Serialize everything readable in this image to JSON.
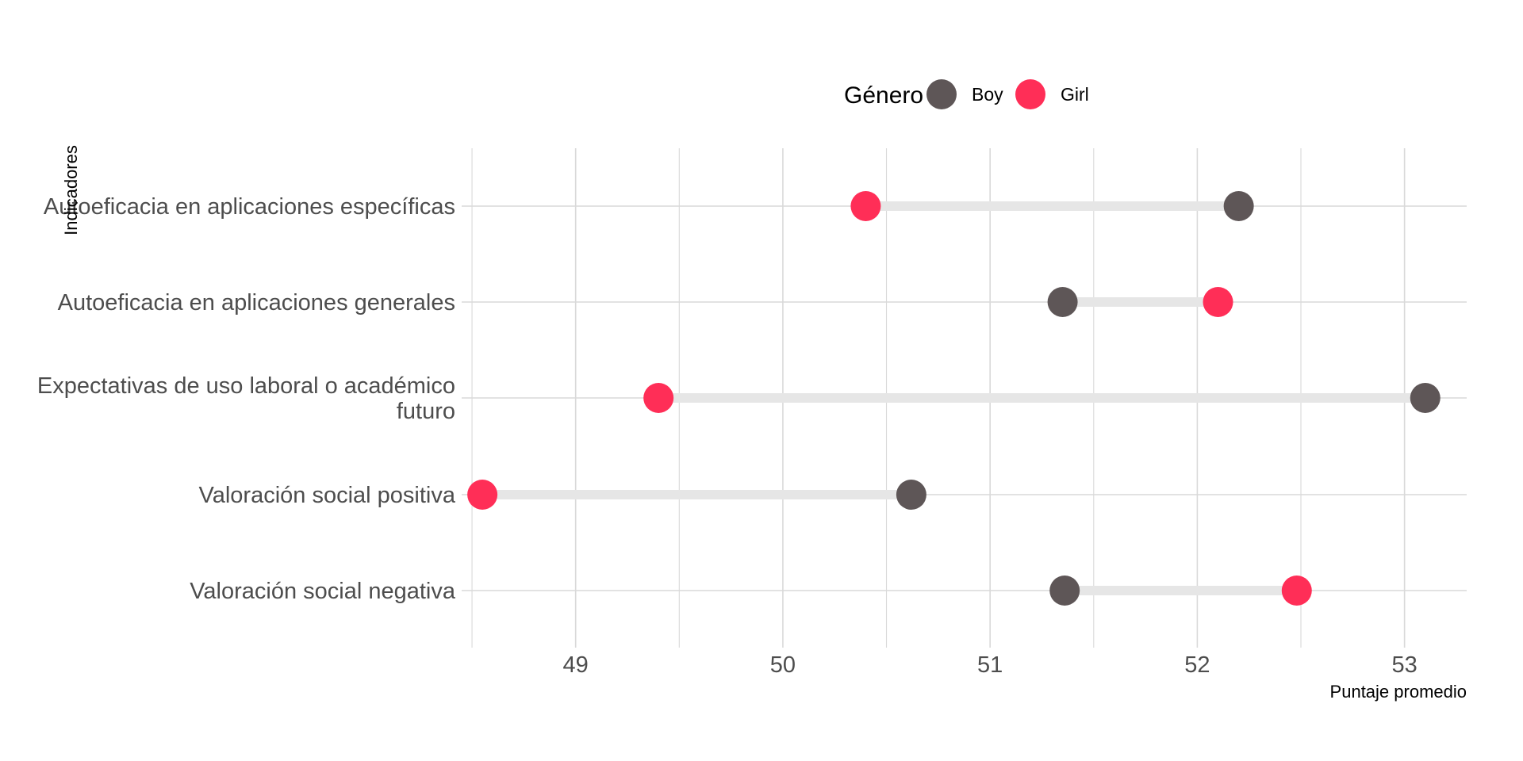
{
  "chart_data": {
    "type": "dumbbell",
    "title": "",
    "xlabel": "Puntaje promedio",
    "ylabel": "Indicadores",
    "xlim": [
      48.45,
      53.3
    ],
    "x_ticks": [
      49,
      50,
      51,
      52,
      53
    ],
    "grid": true,
    "legend": {
      "title": "Género",
      "position": "top",
      "entries": [
        "Boy",
        "Girl"
      ]
    },
    "colors": {
      "Boy": "#5e5657",
      "Girl": "#ff2e57",
      "connector": "#e6e6e6",
      "grid": "#d9d9d9"
    },
    "categories": [
      "Autoeficacia en aplicaciones específicas",
      "Autoeficacia en aplicaciones generales",
      "Expectativas de uso laboral o académico futuro",
      "Valoración social positiva",
      "Valoración social negativa"
    ],
    "category_lines": [
      [
        "Autoeficacia en aplicaciones específicas"
      ],
      [
        "Autoeficacia en aplicaciones generales"
      ],
      [
        "Expectativas de uso laboral o académico",
        "futuro"
      ],
      [
        "Valoración social positiva"
      ],
      [
        "Valoración social negativa"
      ]
    ],
    "series": [
      {
        "name": "Boy",
        "values": [
          52.2,
          51.35,
          53.1,
          50.62,
          51.36
        ]
      },
      {
        "name": "Girl",
        "values": [
          50.4,
          52.1,
          49.4,
          48.55,
          52.48
        ]
      }
    ]
  }
}
